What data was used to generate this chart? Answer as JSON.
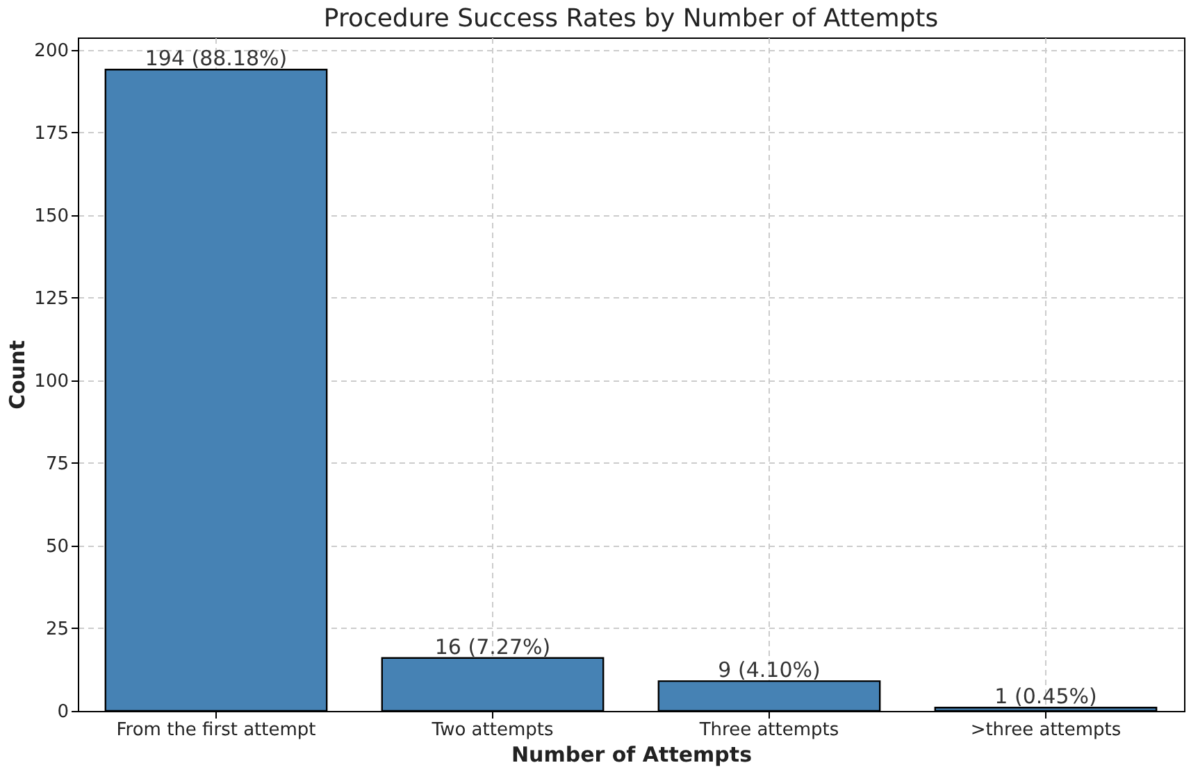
{
  "chart_data": {
    "type": "bar",
    "title": "Procedure Success Rates by Number of Attempts",
    "xlabel": "Number of Attempts",
    "ylabel": "Count",
    "categories": [
      "From the first attempt",
      "Two attempts",
      "Three attempts",
      ">three attempts"
    ],
    "values": [
      194,
      16,
      9,
      1
    ],
    "color": "#4682b4",
    "value_labels": [
      "194 (88.18%)",
      "16 (7.27%)",
      "9 (4.10%)",
      "1 (0.45%)"
    ],
    "ylim": [
      0,
      203.7
    ],
    "yticks": [
      0,
      25,
      50,
      75,
      100,
      125,
      150,
      175,
      200
    ],
    "grid": true,
    "line_style": "dashed"
  }
}
